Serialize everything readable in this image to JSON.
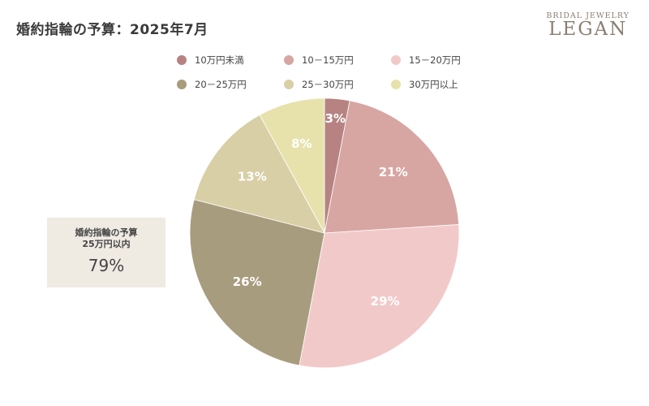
{
  "title": "婚約指輪の予算：2025年7月",
  "brand": {
    "top": "BRIDAL JEWELRY",
    "name": "LEGAN"
  },
  "callout": {
    "line1": "婚約指輪の予算",
    "line2": "25万円以内",
    "value": "79%"
  },
  "chart_data": {
    "type": "pie",
    "title": "婚約指輪の予算：2025年7月",
    "legend_position": "top",
    "slices": [
      {
        "label": "10万円未満",
        "value": 3,
        "display": "3%",
        "color": "#b68382"
      },
      {
        "label": "10－15万円",
        "value": 21,
        "display": "21%",
        "color": "#d7a6a3"
      },
      {
        "label": "15－20万円",
        "value": 29,
        "display": "29%",
        "color": "#f2c9c9"
      },
      {
        "label": "20－25万円",
        "value": 26,
        "display": "26%",
        "color": "#a89c7e"
      },
      {
        "label": "25－30万円",
        "value": 13,
        "display": "13%",
        "color": "#d8cfa6"
      },
      {
        "label": "30万円以上",
        "value": 8,
        "display": "8%",
        "color": "#e7e2ac"
      }
    ]
  }
}
